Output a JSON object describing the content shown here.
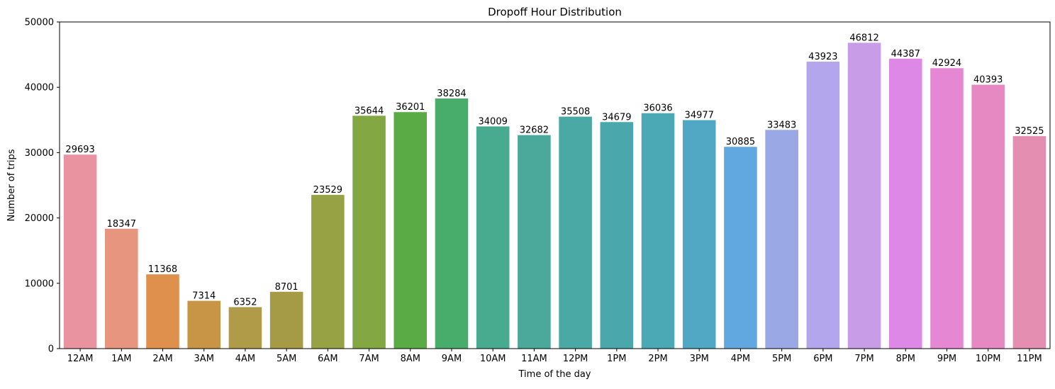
{
  "chart_data": {
    "type": "bar",
    "title": "Dropoff Hour Distribution",
    "xlabel": "Time of the day",
    "ylabel": "Number of trips",
    "ylim": [
      0,
      50000
    ],
    "yticks": [
      0,
      10000,
      20000,
      30000,
      40000,
      50000
    ],
    "categories": [
      "12AM",
      "1AM",
      "2AM",
      "3AM",
      "4AM",
      "5AM",
      "6AM",
      "7AM",
      "8AM",
      "9AM",
      "10AM",
      "11AM",
      "12PM",
      "1PM",
      "2PM",
      "3PM",
      "4PM",
      "5PM",
      "6PM",
      "7PM",
      "8PM",
      "9PM",
      "10PM",
      "11PM"
    ],
    "values": [
      29693,
      18347,
      11368,
      7314,
      6352,
      8701,
      23529,
      35644,
      36201,
      38284,
      34009,
      32682,
      35508,
      34679,
      36036,
      34977,
      30885,
      33483,
      43923,
      46812,
      44387,
      42924,
      40393,
      32525
    ],
    "colors": [
      "#e8939f",
      "#e8957f",
      "#e0904d",
      "#c89546",
      "#b09c48",
      "#a59b46",
      "#97a244",
      "#83a743",
      "#5aab45",
      "#48ac6a",
      "#48aa8f",
      "#4aa99a",
      "#4aa9a5",
      "#4aa8ad",
      "#4ba9b5",
      "#50a8c5",
      "#62a8e0",
      "#9aa8e6",
      "#b4a6ec",
      "#c89ce6",
      "#dd87e6",
      "#e587d2",
      "#e689c3",
      "#e48fb1"
    ],
    "grid": false,
    "legend": "none"
  }
}
